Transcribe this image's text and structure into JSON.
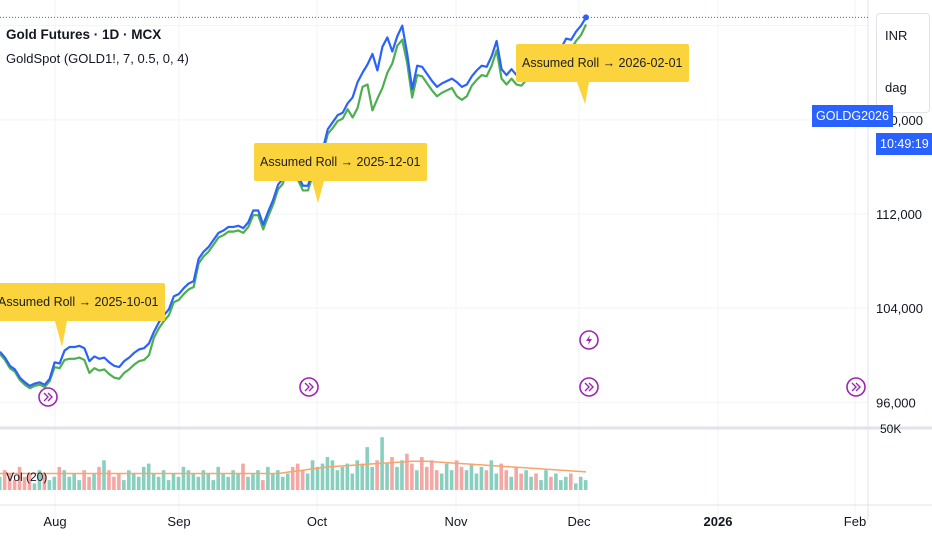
{
  "header": {
    "title": "Gold Futures · 1D · MCX",
    "indicator": "GoldSpot (GOLD1!, 7, 0.5, 0, 4)"
  },
  "sidebar": {
    "currency": "INR",
    "session": "dag"
  },
  "price_tag": {
    "symbol": "GOLDG2026",
    "countdown": "10:49:19"
  },
  "annotations": [
    {
      "label": "Assumed Roll → 2025-10-01"
    },
    {
      "label": "Assumed Roll → 2025-12-01"
    },
    {
      "label": "Assumed Roll → 2026-02-01"
    }
  ],
  "volume_label": "Vol (20)",
  "colors": {
    "blue": "#2962ff",
    "green": "#4caf50",
    "roll": "#fbd33d",
    "vol_up": "#89cfbf",
    "vol_down": "#f4a7a3",
    "ma": "#f7a56b",
    "event": "#9c27b0"
  },
  "chart_data": {
    "type": "line",
    "title": "Gold Futures · 1D · MCX",
    "x_ticks": [
      "Aug",
      "Sep",
      "Oct",
      "Nov",
      "Dec",
      "2026",
      "Feb"
    ],
    "y_ticks": [
      "96,000",
      "104,000",
      "112,000",
      "120,000"
    ],
    "y_axis_top_label": "50K",
    "ylim": [
      94500,
      129500
    ],
    "series": [
      {
        "name": "GOLDG2026 futures",
        "values": [
          100300,
          99800,
          99100,
          98800,
          98100,
          97700,
          97400,
          97600,
          97700,
          97500,
          98000,
          99400,
          99300,
          100400,
          100700,
          100700,
          100800,
          100600,
          99500,
          99900,
          99700,
          99800,
          99400,
          99100,
          99000,
          99500,
          99800,
          100200,
          100500,
          100600,
          101000,
          102000,
          102800,
          103400,
          103900,
          105000,
          105200,
          105700,
          106100,
          106300,
          108200,
          108800,
          109200,
          109800,
          110400,
          110600,
          110900,
          110900,
          111000,
          110800,
          111300,
          112300,
          112300,
          111100,
          112200,
          113200,
          114500,
          115000,
          117300,
          116600,
          115300,
          114400,
          114400,
          115700,
          115900,
          117500,
          119200,
          119800,
          120400,
          120600,
          121400,
          121900,
          123200,
          124000,
          124700,
          125600,
          124200,
          126200,
          127000,
          125800,
          127100,
          128000,
          125600,
          122600,
          124600,
          124500,
          123900,
          123300,
          122800,
          123100,
          123300,
          123500,
          123200,
          122800,
          123000,
          123700,
          124200,
          124600,
          124500,
          125400,
          126700,
          124300,
          123800,
          124300,
          123800,
          123700,
          124200,
          124800,
          124600,
          125200,
          125500,
          125200,
          125900,
          126100,
          126900,
          126800,
          127500,
          128000,
          128700
        ]
      },
      {
        "name": "GoldSpot",
        "values": [
          100100,
          99600,
          98900,
          98600,
          97900,
          97500,
          97200,
          97400,
          97500,
          97300,
          97800,
          99000,
          98900,
          99600,
          99700,
          99700,
          99800,
          99600,
          98500,
          98900,
          98700,
          98800,
          98400,
          98100,
          98000,
          98500,
          98800,
          99200,
          99500,
          99600,
          100000,
          101500,
          102300,
          102900,
          103400,
          104500,
          104700,
          105200,
          105600,
          105800,
          107800,
          108400,
          108800,
          109400,
          110000,
          110200,
          110500,
          110500,
          110600,
          110400,
          110900,
          111900,
          111900,
          110700,
          111800,
          112800,
          114100,
          114600,
          116900,
          116200,
          114900,
          114000,
          114000,
          115300,
          115500,
          117100,
          118800,
          119300,
          119900,
          120100,
          120900,
          120200,
          121000,
          122800,
          123000,
          120800,
          121800,
          122700,
          124000,
          124800,
          126300,
          126800,
          124800,
          121900,
          123800,
          123700,
          123100,
          122500,
          122000,
          122300,
          122500,
          122700,
          122000,
          121700,
          122000,
          122900,
          123400,
          123800,
          123700,
          124600,
          125900,
          123500,
          123000,
          123500,
          123000,
          122900,
          123400,
          124000,
          123800,
          124400,
          124700,
          124400,
          125100,
          125300,
          126100,
          126000,
          126700,
          127200,
          128100
        ]
      }
    ],
    "volume": {
      "name": "Vol (20)",
      "values": [
        4,
        6,
        5,
        3,
        7,
        4,
        5,
        2,
        6,
        5,
        3,
        4,
        7,
        6,
        4,
        5,
        3,
        6,
        4,
        5,
        7,
        9,
        6,
        4,
        5,
        3,
        6,
        5,
        4,
        7,
        8,
        5,
        4,
        6,
        3,
        5,
        4,
        7,
        6,
        5,
        4,
        6,
        5,
        3,
        7,
        5,
        4,
        6,
        5,
        8,
        4,
        5,
        6,
        3,
        7,
        5,
        6,
        4,
        5,
        7,
        8,
        6,
        5,
        9,
        7,
        8,
        10,
        9,
        6,
        7,
        8,
        5,
        9,
        8,
        13,
        7,
        9,
        16,
        8,
        10,
        7,
        9,
        11,
        8,
        6,
        10,
        7,
        9,
        6,
        5,
        8,
        6,
        9,
        7,
        6,
        8,
        5,
        7,
        6,
        9,
        5,
        8,
        6,
        4,
        7,
        5,
        6,
        4,
        5,
        3,
        6,
        4,
        5,
        3,
        4,
        5,
        2,
        4,
        3
      ],
      "ma": [
        5,
        5,
        5,
        5,
        5,
        5,
        5,
        5,
        5,
        5,
        5,
        5,
        5,
        5,
        5,
        5,
        5,
        5,
        5,
        5,
        5,
        5,
        5,
        5,
        5,
        5,
        5,
        5,
        5,
        5,
        5,
        5,
        5,
        5,
        5,
        5,
        5,
        5,
        5,
        5,
        5,
        5,
        5,
        5,
        5,
        5,
        5,
        5,
        5,
        5,
        5,
        5,
        5,
        5,
        5,
        5,
        5,
        5.2,
        5.4,
        5.6,
        5.8,
        6,
        6.2,
        6.4,
        6.6,
        6.8,
        7,
        7.1,
        7.2,
        7.3,
        7.4,
        7.5,
        7.6,
        7.7,
        7.8,
        7.9,
        8,
        8.1,
        8.2,
        8.3,
        8.4,
        8.5,
        8.6,
        8.7,
        8.7,
        8.7,
        8.7,
        8.6,
        8.5,
        8.4,
        8.3,
        8.2,
        8.1,
        8,
        7.9,
        7.8,
        7.7,
        7.6,
        7.5,
        7.4,
        7.3,
        7.2,
        7.1,
        7,
        6.9,
        6.8,
        6.7,
        6.6,
        6.5,
        6.4,
        6.3,
        6.2,
        6.1,
        6,
        5.9,
        5.8,
        5.7,
        5.6,
        5.5
      ]
    }
  }
}
